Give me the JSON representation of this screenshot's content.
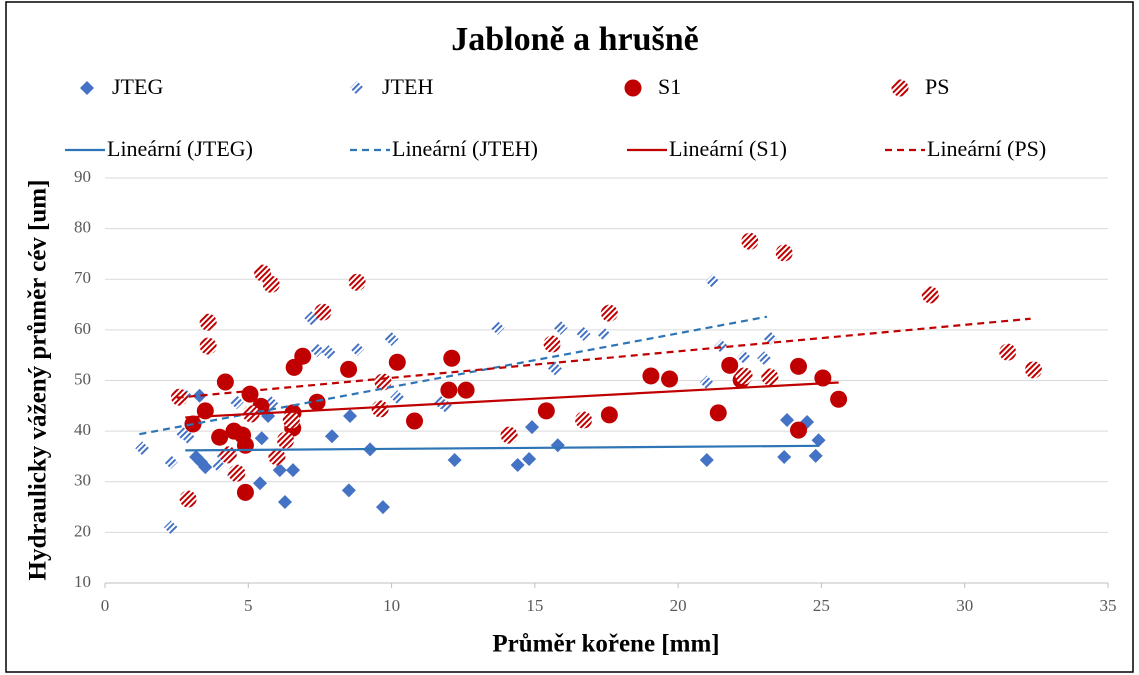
{
  "chart_data": {
    "type": "scatter",
    "title": "Jabloně a hrušně",
    "x_label": "Průměr kořene [mm]",
    "y_label": "Hydraulicky vážený  průměr cév [um]",
    "xlim": [
      0,
      35
    ],
    "xticks": [
      0,
      5,
      10,
      15,
      20,
      25,
      30,
      35
    ],
    "ylim": [
      10,
      90
    ],
    "yticks": [
      10,
      20,
      30,
      40,
      50,
      60,
      70,
      80,
      90
    ],
    "grid": true,
    "series": [
      {
        "name": "JTEG",
        "color": "#4472c4",
        "marker": "diamond",
        "fill": "solid",
        "x": [
          3.18,
          3.35,
          3.5,
          3.3,
          4.78,
          5.41,
          5.47,
          5.69,
          6.1,
          6.28,
          6.56,
          7.92,
          8.51,
          8.55,
          9.25,
          9.7,
          12.2,
          14.4,
          14.8,
          14.9,
          15.8,
          21.0,
          23.7,
          23.8,
          24.5,
          24.8,
          24.9
        ],
        "values": [
          34.9,
          33.9,
          32.9,
          47.0,
          39.6,
          29.7,
          38.6,
          43.0,
          32.3,
          26.0,
          32.3,
          39.0,
          28.3,
          43.0,
          36.4,
          25.0,
          34.3,
          33.3,
          34.5,
          40.8,
          37.2,
          34.3,
          34.9,
          42.2,
          41.8,
          35.1,
          38.2
        ]
      },
      {
        "name": "JTEH",
        "color": "#4472c4",
        "marker": "diamond",
        "fill": "hatched",
        "x": [
          1.3,
          2.3,
          2.3,
          2.7,
          2.9,
          2.8,
          3.95,
          4.1,
          4.6,
          4.5,
          5.8,
          7.2,
          7.4,
          7.8,
          8.8,
          10.0,
          10.2,
          11.7,
          11.9,
          13.7,
          15.7,
          15.9,
          16.7,
          17.4,
          21.0,
          21.2,
          21.5,
          22.3,
          23.0,
          23.2
        ],
        "values": [
          36.6,
          33.9,
          21.0,
          39.6,
          38.8,
          47.0,
          33.3,
          35.3,
          45.7,
          31.3,
          45.5,
          62.3,
          56.0,
          55.6,
          56.2,
          58.2,
          46.7,
          45.7,
          44.9,
          60.4,
          52.4,
          60.4,
          59.2,
          59.2,
          49.6,
          69.6,
          56.8,
          54.6,
          54.4,
          58.4
        ]
      },
      {
        "name": "S1",
        "color": "#c00000",
        "marker": "circle",
        "fill": "solid",
        "x": [
          3.07,
          3.5,
          4.2,
          4.0,
          4.5,
          4.8,
          4.9,
          4.9,
          5.06,
          5.44,
          6.6,
          6.56,
          6.55,
          6.9,
          7.4,
          8.5,
          10.2,
          10.8,
          12.1,
          12.0,
          12.6,
          15.4,
          17.6,
          19.05,
          19.7,
          21.4,
          21.8,
          22.2,
          24.2,
          24.2,
          25.05,
          25.6
        ],
        "values": [
          41.4,
          44.0,
          49.7,
          38.8,
          40.0,
          39.2,
          37.2,
          27.9,
          47.3,
          44.9,
          52.6,
          43.6,
          40.6,
          54.8,
          45.7,
          52.2,
          53.6,
          42.0,
          54.4,
          48.1,
          48.1,
          44.0,
          43.2,
          50.9,
          50.3,
          43.6,
          53.0,
          50.1,
          52.8,
          40.2,
          50.5,
          46.3
        ]
      },
      {
        "name": "PS",
        "color": "#c00000",
        "marker": "circle",
        "fill": "hatched",
        "x": [
          2.6,
          2.9,
          3.6,
          3.6,
          4.3,
          4.6,
          5.1,
          5.5,
          5.8,
          6.0,
          6.3,
          6.5,
          7.6,
          8.8,
          9.6,
          9.7,
          14.1,
          15.6,
          16.7,
          17.6,
          22.3,
          22.5,
          23.2,
          23.7,
          28.8,
          31.5,
          32.4
        ],
        "values": [
          46.7,
          26.6,
          61.5,
          56.8,
          35.3,
          31.7,
          43.4,
          71.2,
          69.0,
          34.9,
          38.2,
          42.2,
          63.5,
          69.4,
          44.4,
          49.7,
          39.2,
          57.2,
          42.2,
          63.3,
          50.9,
          77.5,
          50.7,
          75.2,
          66.9,
          55.6,
          52.1
        ]
      }
    ],
    "trendlines": [
      {
        "name": "Lineární (JTEG)",
        "color": "#2e75b6",
        "dashed": false,
        "x": [
          2.8,
          24.9
        ],
        "values": [
          36.2,
          37.1
        ]
      },
      {
        "name": "Lineární (JTEH)",
        "color": "#2e75b6",
        "dashed": true,
        "x": [
          1.2,
          23.1
        ],
        "values": [
          39.4,
          62.6
        ]
      },
      {
        "name": "Lineární (S1)",
        "color": "#c00000",
        "dashed": false,
        "x": [
          2.8,
          25.6
        ],
        "values": [
          42.7,
          49.6
        ]
      },
      {
        "name": "Lineární (PS)",
        "color": "#c00000",
        "dashed": true,
        "x": [
          2.5,
          32.3
        ],
        "values": [
          46.6,
          62.2
        ]
      }
    ]
  }
}
